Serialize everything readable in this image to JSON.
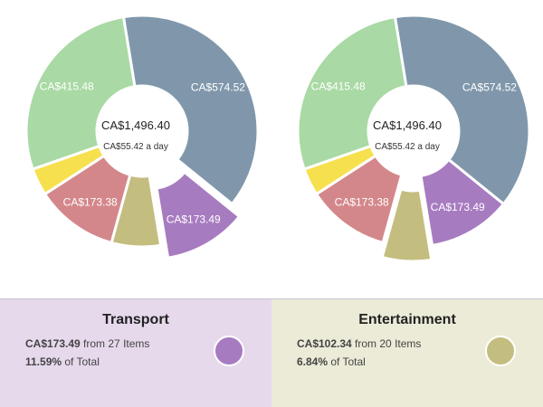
{
  "chart_data": [
    {
      "type": "pie",
      "donut": true,
      "center": {
        "total": "CA$1,496.40",
        "daily": "CA$55.42 a day"
      },
      "exploded": "Transport",
      "slices": [
        {
          "name": "Transport",
          "value": 173.49,
          "label": "CA$173.49",
          "color": "#a77bc0"
        },
        {
          "name": "Entertainment",
          "value": 102.34,
          "label": "",
          "color": "#c4bd80"
        },
        {
          "name": "",
          "value": 173.38,
          "label": "CA$173.38",
          "color": "#d4878a"
        },
        {
          "name": "",
          "value": 57.19,
          "label": "",
          "color": "#f6e04e"
        },
        {
          "name": "",
          "value": 415.48,
          "label": "CA$415.48",
          "color": "#a9d9a4"
        },
        {
          "name": "",
          "value": 574.52,
          "label": "CA$574.52",
          "color": "#8097ab"
        }
      ]
    },
    {
      "type": "pie",
      "donut": true,
      "center": {
        "total": "CA$1,496.40",
        "daily": "CA$55.42 a day"
      },
      "exploded": "Entertainment",
      "slices": [
        {
          "name": "Transport",
          "value": 173.49,
          "label": "CA$173.49",
          "color": "#a77bc0"
        },
        {
          "name": "Entertainment",
          "value": 102.34,
          "label": "",
          "color": "#c4bd80"
        },
        {
          "name": "",
          "value": 173.38,
          "label": "CA$173.38",
          "color": "#d4878a"
        },
        {
          "name": "",
          "value": 57.19,
          "label": "",
          "color": "#f6e04e"
        },
        {
          "name": "",
          "value": 415.48,
          "label": "CA$415.48",
          "color": "#a9d9a4"
        },
        {
          "name": "",
          "value": 574.52,
          "label": "CA$574.52",
          "color": "#8097ab"
        }
      ]
    }
  ],
  "panels": [
    {
      "title": "Transport",
      "amount": "CA$173.49",
      "items_text": " from 27 Items",
      "percent": "11.59%",
      "percent_text": " of Total",
      "color": "#a77bc0"
    },
    {
      "title": "Entertainment",
      "amount": "CA$102.34",
      "items_text": " from 20 Items",
      "percent": "6.84%",
      "percent_text": " of Total",
      "color": "#c4bd80"
    }
  ]
}
